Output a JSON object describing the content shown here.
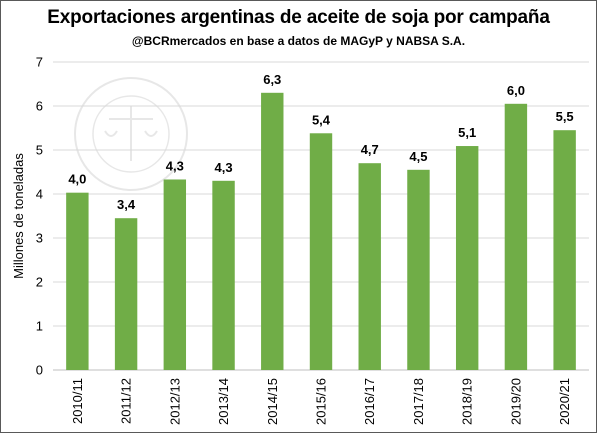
{
  "chart_data": {
    "type": "bar",
    "title": "Exportaciones argentinas de aceite de soja por campaña",
    "subtitle": "@BCRmercados en base a datos de MAGyP y NABSA S.A.",
    "ylabel": "Millones de toneladas",
    "xlabel": "",
    "ylim": [
      0,
      7
    ],
    "yticks": [
      0,
      1,
      2,
      3,
      4,
      5,
      6,
      7
    ],
    "grid": true,
    "bar_color": "#70ad47",
    "categories": [
      "2010/11",
      "2011/12",
      "2012/13",
      "2013/14",
      "2014/15",
      "2015/16",
      "2016/17",
      "2017/18",
      "2018/19",
      "2019/20",
      "2020/21"
    ],
    "values": [
      4.03,
      3.45,
      4.33,
      4.3,
      6.3,
      5.38,
      4.7,
      4.55,
      5.09,
      6.05,
      5.45
    ],
    "data_labels": [
      "4,0",
      "3,4",
      "4,3",
      "4,3",
      "6,3",
      "5,4",
      "4,7",
      "4,5",
      "5,1",
      "6,0",
      "5,5"
    ],
    "watermark_text": "BOLSA DE COMERCIO DE ROSARIO"
  }
}
